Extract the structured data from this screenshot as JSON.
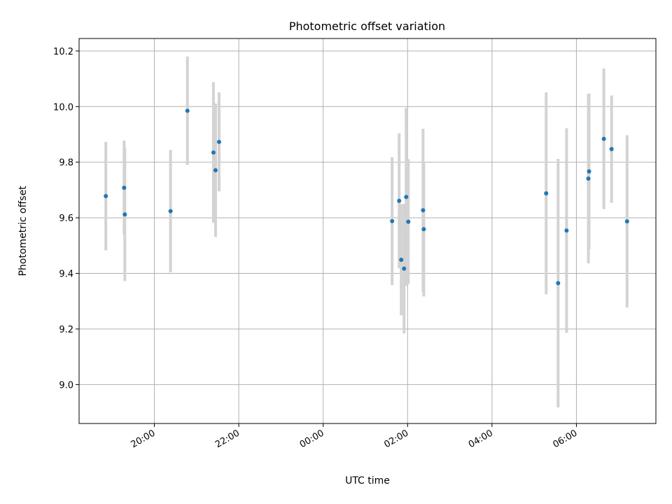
{
  "chart_data": {
    "type": "scatter",
    "title": "Photometric offset variation",
    "xlabel": "UTC time",
    "ylabel": "Photometric offset",
    "x_kind": "time",
    "xlim": [
      "18:13",
      "07:53"
    ],
    "ylim": [
      8.86,
      10.245
    ],
    "x_ticks": [
      "20:00",
      "22:00",
      "00:00",
      "02:00",
      "04:00",
      "06:00"
    ],
    "y_ticks": [
      9.0,
      9.2,
      9.4,
      9.6,
      9.8,
      10.0,
      10.2
    ],
    "grid": true,
    "colors": {
      "point": "#1f77b4",
      "error_bar": "#d3d3d3",
      "grid": "#b0b0b0"
    },
    "series": [
      {
        "points": [
          {
            "time": "18:51",
            "y": 9.678,
            "err": 0.195
          },
          {
            "time": "19:17",
            "y": 9.708,
            "err": 0.17
          },
          {
            "time": "19:18",
            "y": 9.612,
            "err": 0.24
          },
          {
            "time": "20:23",
            "y": 9.624,
            "err": 0.22
          },
          {
            "time": "20:47",
            "y": 9.985,
            "err": 0.195
          },
          {
            "time": "21:24",
            "y": 9.835,
            "err": 0.253
          },
          {
            "time": "21:27",
            "y": 9.771,
            "err": 0.24
          },
          {
            "time": "21:32",
            "y": 9.873,
            "err": 0.178
          },
          {
            "time": "01:38",
            "y": 9.588,
            "err": 0.23
          },
          {
            "time": "01:48",
            "y": 9.661,
            "err": 0.243
          },
          {
            "time": "01:51",
            "y": 9.449,
            "err": 0.2
          },
          {
            "time": "01:55",
            "y": 9.417,
            "err": 0.233
          },
          {
            "time": "01:58",
            "y": 9.675,
            "err": 0.32
          },
          {
            "time": "02:01",
            "y": 9.586,
            "err": 0.225
          },
          {
            "time": "02:22",
            "y": 9.627,
            "err": 0.293
          },
          {
            "time": "02:23",
            "y": 9.559,
            "err": 0.242
          },
          {
            "time": "05:17",
            "y": 9.688,
            "err": 0.363
          },
          {
            "time": "05:34",
            "y": 9.365,
            "err": 0.447
          },
          {
            "time": "05:46",
            "y": 9.554,
            "err": 0.368
          },
          {
            "time": "06:17",
            "y": 9.741,
            "err": 0.305
          },
          {
            "time": "06:18",
            "y": 9.767,
            "err": 0.28
          },
          {
            "time": "06:39",
            "y": 9.884,
            "err": 0.253
          },
          {
            "time": "06:50",
            "y": 9.847,
            "err": 0.193
          },
          {
            "time": "07:12",
            "y": 9.587,
            "err": 0.31
          }
        ]
      }
    ]
  }
}
